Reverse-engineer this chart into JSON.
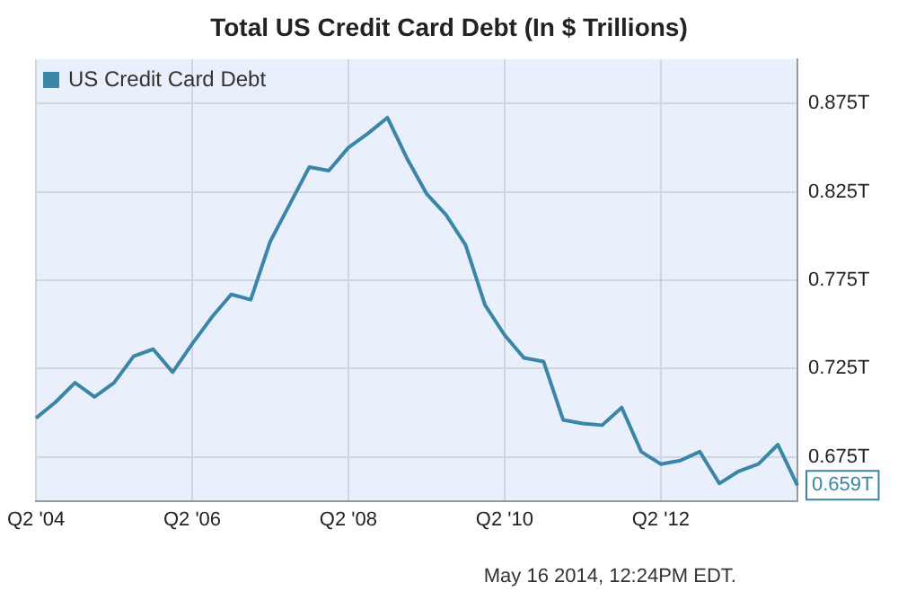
{
  "chart_data": {
    "type": "line",
    "title": "Total US Credit Card Debt (In $ Trillions)",
    "categories": [
      "Q2 '04",
      null,
      null,
      null,
      null,
      null,
      null,
      null,
      "Q2 '06",
      null,
      null,
      null,
      null,
      null,
      null,
      null,
      "Q2 '08",
      null,
      null,
      null,
      null,
      null,
      null,
      null,
      "Q2 '10",
      null,
      null,
      null,
      null,
      null,
      null,
      null,
      "Q2 '12",
      null,
      null,
      null,
      null,
      null,
      null,
      null
    ],
    "series": [
      {
        "name": "US Credit Card Debt",
        "color": "#3b85a8",
        "values": [
          0.697,
          0.706,
          0.717,
          0.709,
          0.717,
          0.732,
          0.736,
          0.723,
          0.739,
          0.754,
          0.767,
          0.764,
          0.797,
          0.818,
          0.839,
          0.837,
          0.85,
          0.858,
          0.867,
          0.844,
          0.824,
          0.812,
          0.795,
          0.761,
          0.744,
          0.731,
          0.729,
          0.696,
          0.694,
          0.693,
          0.703,
          0.678,
          0.671,
          0.673,
          0.678,
          0.66,
          0.667,
          0.671,
          0.682,
          0.659
        ],
        "value_labels": [
          null,
          null,
          null,
          null,
          null,
          null,
          null,
          null,
          null,
          null,
          null,
          null,
          null,
          null,
          null,
          null,
          null,
          null,
          null,
          null,
          null,
          null,
          null,
          null,
          null,
          null,
          null,
          null,
          null,
          null,
          null,
          null,
          null,
          null,
          null,
          null,
          null,
          null,
          null,
          "0.659T"
        ]
      }
    ],
    "ylim": [
      0.65,
      0.9
    ],
    "yticks": [
      {
        "value": 0.675,
        "label": "0.675T"
      },
      {
        "value": 0.725,
        "label": "0.725T"
      },
      {
        "value": 0.775,
        "label": "0.775T"
      },
      {
        "value": 0.825,
        "label": "0.825T"
      },
      {
        "value": 0.875,
        "label": "0.875T"
      }
    ],
    "grid": true,
    "legend": "top left",
    "marker": "none",
    "line_style": "solid",
    "annotations": [
      "May 16 2014, 12:24PM EDT."
    ]
  }
}
